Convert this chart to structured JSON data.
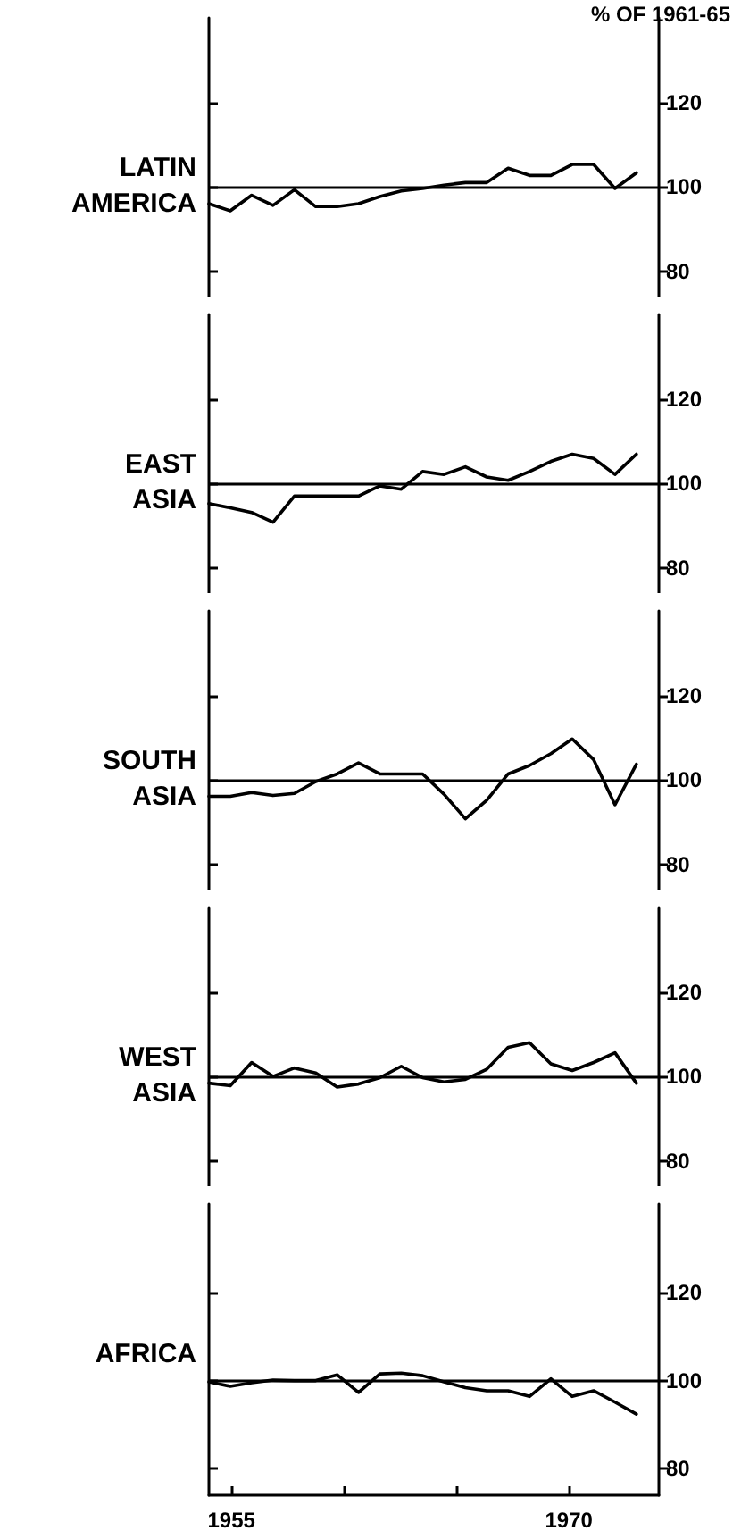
{
  "chart_data": [
    {
      "type": "line",
      "title": "LATIN AMERICA",
      "ylabel": "% OF 1961-65",
      "tick_labels": "y",
      "xlim": [
        1954,
        1974
      ],
      "ylim": [
        74,
        140
      ],
      "yticks": [
        80,
        100,
        120
      ],
      "ref_lines": [
        {
          "axis": "y",
          "value": 100,
          "color": "#000000"
        }
      ],
      "x": [
        1954,
        1954.95,
        1955.9,
        1956.85,
        1957.8,
        1958.75,
        1959.7,
        1960.65,
        1961.6,
        1962.55,
        1963.5,
        1964.45,
        1965.4,
        1966.35,
        1967.3,
        1968.25,
        1969.2,
        1970.15,
        1971.1,
        1972.05,
        1973
      ],
      "series": [
        {
          "color": "#000000",
          "values": [
            96,
            94.3,
            98,
            95.6,
            99.3,
            95.3,
            95.3,
            96,
            97.7,
            99,
            99.6,
            100.4,
            101,
            101,
            104.4,
            102.7,
            102.7,
            105.3,
            105.3,
            99.6,
            103.3
          ]
        }
      ]
    },
    {
      "type": "line",
      "title": "EAST ASIA",
      "tick_labels": "y",
      "xlim": [
        1954,
        1974
      ],
      "ylim": [
        74,
        140
      ],
      "yticks": [
        80,
        100,
        120
      ],
      "ref_lines": [
        {
          "axis": "y",
          "value": 100,
          "color": "#000000"
        }
      ],
      "x": [
        1954,
        1954.95,
        1955.9,
        1956.85,
        1957.8,
        1958.75,
        1959.7,
        1960.65,
        1961.6,
        1962.55,
        1963.5,
        1964.45,
        1965.4,
        1966.35,
        1967.3,
        1968.25,
        1969.2,
        1970.15,
        1971.1,
        1972.05,
        1973
      ],
      "series": [
        {
          "color": "#000000",
          "values": [
            95.2,
            94.2,
            93.1,
            90.8,
            97,
            97,
            97,
            97,
            99.4,
            98.6,
            102.8,
            102.1,
            103.9,
            101.5,
            100.7,
            102.8,
            105.2,
            106.9,
            105.9,
            102.1,
            106.9
          ]
        }
      ]
    },
    {
      "type": "line",
      "title": "SOUTH ASIA",
      "tick_labels": "y",
      "xlim": [
        1954,
        1974
      ],
      "ylim": [
        74,
        140
      ],
      "yticks": [
        80,
        100,
        120
      ],
      "ref_lines": [
        {
          "axis": "y",
          "value": 100,
          "color": "#000000"
        }
      ],
      "x": [
        1954,
        1954.95,
        1955.9,
        1956.85,
        1957.8,
        1958.75,
        1959.7,
        1960.65,
        1961.6,
        1962.55,
        1963.5,
        1964.45,
        1965.4,
        1966.35,
        1967.3,
        1968.25,
        1969.2,
        1970.15,
        1971.1,
        1972.05,
        1973
      ],
      "series": [
        {
          "color": "#000000",
          "values": [
            96.1,
            96.1,
            97,
            96.3,
            96.8,
            99.6,
            101.4,
            104,
            101.4,
            101.4,
            101.4,
            96.6,
            90.8,
            95.2,
            101.4,
            103.4,
            106.2,
            109.7,
            104.8,
            94.1,
            103.7
          ]
        }
      ]
    },
    {
      "type": "line",
      "title": "WEST ASIA",
      "tick_labels": "y",
      "xlim": [
        1954,
        1974
      ],
      "ylim": [
        74,
        140
      ],
      "yticks": [
        80,
        100,
        120
      ],
      "ref_lines": [
        {
          "axis": "y",
          "value": 100,
          "color": "#000000"
        }
      ],
      "x": [
        1954,
        1954.95,
        1955.9,
        1956.85,
        1957.8,
        1958.75,
        1959.7,
        1960.65,
        1961.6,
        1962.55,
        1963.5,
        1964.45,
        1965.4,
        1966.35,
        1967.3,
        1968.25,
        1969.2,
        1970.15,
        1971.1,
        1972.05,
        1973
      ],
      "series": [
        {
          "color": "#000000",
          "values": [
            98.4,
            97.8,
            103.3,
            100,
            102,
            100.8,
            97.5,
            98.2,
            99.7,
            102.4,
            99.7,
            98.7,
            99.3,
            101.7,
            106.9,
            108,
            103,
            101.4,
            103.3,
            105.6,
            98.4
          ]
        }
      ]
    },
    {
      "type": "line",
      "title": "AFRICA",
      "xlim": [
        1954,
        1974
      ],
      "xticks": [
        1955,
        {
          "value": 1960,
          "label": null
        },
        {
          "value": 1965,
          "label": null
        },
        1970
      ],
      "ylim": [
        74,
        140
      ],
      "yticks": [
        80,
        100,
        120
      ],
      "ref_lines": [
        {
          "axis": "y",
          "value": 100,
          "color": "#000000"
        }
      ],
      "x": [
        1954,
        1954.95,
        1955.9,
        1956.85,
        1957.8,
        1958.75,
        1959.7,
        1960.65,
        1961.6,
        1962.55,
        1963.5,
        1964.45,
        1965.4,
        1966.35,
        1967.3,
        1968.25,
        1969.2,
        1970.15,
        1971.1,
        1972.05,
        1973
      ],
      "series": [
        {
          "color": "#000000",
          "values": [
            99.7,
            98.7,
            99.5,
            100.1,
            100,
            100,
            101.3,
            97.3,
            101.5,
            101.7,
            101.1,
            99.7,
            98.4,
            97.7,
            97.7,
            96.4,
            100.4,
            96.4,
            97.7,
            95.1,
            92.4
          ]
        }
      ]
    }
  ]
}
